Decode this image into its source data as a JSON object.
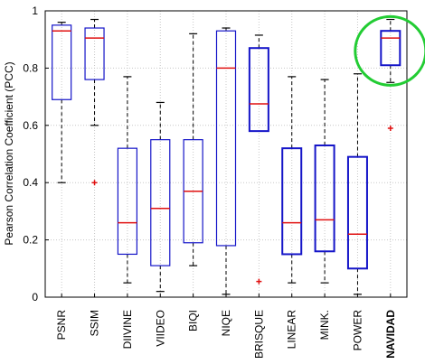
{
  "chart_data": {
    "type": "box",
    "ylabel": "Pearson Correlation Coefficient (PCC)",
    "ylim": [
      0,
      1
    ],
    "yticks": [
      "0",
      "0.2",
      "0.4",
      "0.6",
      "0.8",
      "1"
    ],
    "grid": "dotted",
    "categories": [
      "PSNR",
      "SSIM",
      "DIIVINE",
      "VIIDEO",
      "BIQI",
      "NIQE",
      "BRISQUE",
      "LINEAR",
      "MINK.",
      "POWER",
      "NAVIDAD"
    ],
    "highlight": {
      "category": "NAVIDAD",
      "label_color": "#1a1aa6",
      "circle_color": "#22cc33"
    },
    "colors": {
      "box": "#1414c8",
      "median": "#e01010",
      "whisker": "#000000",
      "outlier": "#e01010",
      "grid": "#c8c8c8"
    },
    "boxes": [
      {
        "category": "PSNR",
        "min": 0.4,
        "q1": 0.69,
        "median": 0.93,
        "q3": 0.95,
        "max": 0.96,
        "outliers": []
      },
      {
        "category": "SSIM",
        "min": 0.6,
        "q1": 0.76,
        "median": 0.905,
        "q3": 0.94,
        "max": 0.97,
        "outliers": [
          0.4
        ]
      },
      {
        "category": "DIIVINE",
        "min": 0.05,
        "q1": 0.15,
        "median": 0.26,
        "q3": 0.52,
        "max": 0.77,
        "outliers": []
      },
      {
        "category": "VIIDEO",
        "min": 0.02,
        "q1": 0.11,
        "median": 0.31,
        "q3": 0.55,
        "max": 0.68,
        "outliers": []
      },
      {
        "category": "BIQI",
        "min": 0.11,
        "q1": 0.19,
        "median": 0.37,
        "q3": 0.55,
        "max": 0.92,
        "outliers": []
      },
      {
        "category": "NIQE",
        "min": 0.01,
        "q1": 0.18,
        "median": 0.8,
        "q3": 0.93,
        "max": 0.94,
        "outliers": []
      },
      {
        "category": "BRISQUE",
        "min": 0.58,
        "q1": 0.58,
        "median": 0.675,
        "q3": 0.87,
        "max": 0.915,
        "outliers": [
          0.055
        ]
      },
      {
        "category": "LINEAR",
        "min": 0.05,
        "q1": 0.15,
        "median": 0.26,
        "q3": 0.52,
        "max": 0.77,
        "outliers": []
      },
      {
        "category": "MINK.",
        "min": 0.05,
        "q1": 0.16,
        "median": 0.27,
        "q3": 0.53,
        "max": 0.76,
        "outliers": []
      },
      {
        "category": "POWER",
        "min": 0.01,
        "q1": 0.1,
        "median": 0.22,
        "q3": 0.49,
        "max": 0.78,
        "outliers": []
      },
      {
        "category": "NAVIDAD",
        "min": 0.75,
        "q1": 0.81,
        "median": 0.905,
        "q3": 0.93,
        "max": 0.97,
        "outliers": [
          0.59
        ]
      }
    ]
  }
}
